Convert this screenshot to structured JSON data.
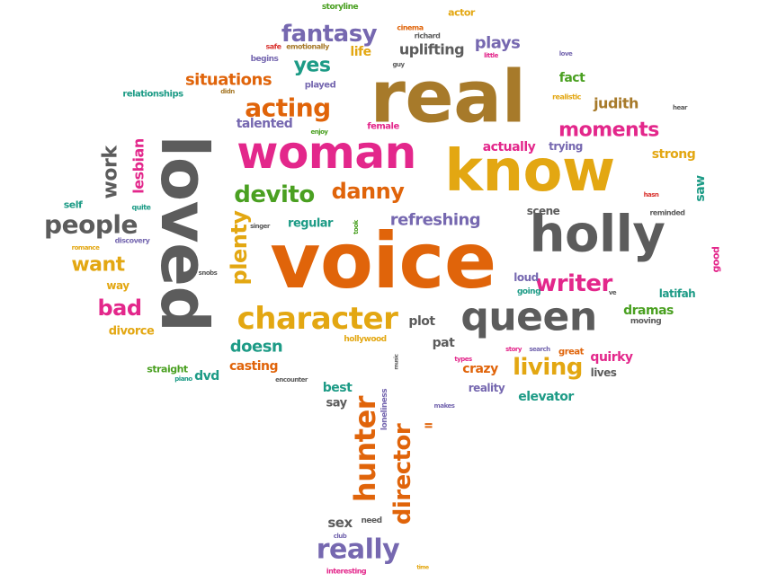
{
  "palette": {
    "orange": "#E0640A",
    "brown": "#A77A2A",
    "gold": "#E3A712",
    "magenta": "#E3278B",
    "green": "#4AA021",
    "teal": "#1D9B86",
    "purple": "#7668B0",
    "gray": "#5C5C5C",
    "red": "#D9322E"
  },
  "words": [
    {
      "text": "real",
      "color": "brown"
    },
    {
      "text": "voice",
      "color": "orange"
    },
    {
      "text": "loved",
      "color": "gray"
    },
    {
      "text": "know",
      "color": "gold"
    },
    {
      "text": "holly",
      "color": "gray"
    },
    {
      "text": "woman",
      "color": "magenta"
    },
    {
      "text": "queen",
      "color": "gray"
    },
    {
      "text": "character",
      "color": "gold"
    },
    {
      "text": "hunter",
      "color": "orange"
    },
    {
      "text": "director",
      "color": "orange"
    },
    {
      "text": "really",
      "color": "purple"
    },
    {
      "text": "acting",
      "color": "orange"
    },
    {
      "text": "devito",
      "color": "green"
    },
    {
      "text": "danny",
      "color": "orange"
    },
    {
      "text": "writer",
      "color": "magenta"
    },
    {
      "text": "moments",
      "color": "magenta"
    },
    {
      "text": "people",
      "color": "gray"
    },
    {
      "text": "plenty",
      "color": "gold"
    },
    {
      "text": "fantasy",
      "color": "purple"
    },
    {
      "text": "living",
      "color": "gold"
    },
    {
      "text": "yes",
      "color": "teal"
    },
    {
      "text": "want",
      "color": "gold"
    },
    {
      "text": "bad",
      "color": "magenta"
    },
    {
      "text": "refreshing",
      "color": "purple"
    },
    {
      "text": "situations",
      "color": "orange"
    },
    {
      "text": "uplifting",
      "color": "gray"
    },
    {
      "text": "plays",
      "color": "purple"
    },
    {
      "text": "doesn",
      "color": "teal"
    },
    {
      "text": "work",
      "color": "gray"
    },
    {
      "text": "lesbian",
      "color": "magenta"
    },
    {
      "text": "talented",
      "color": "purple"
    },
    {
      "text": "judith",
      "color": "brown"
    },
    {
      "text": "strong",
      "color": "gold"
    },
    {
      "text": "actually",
      "color": "magenta"
    },
    {
      "text": "fact",
      "color": "green"
    },
    {
      "text": "dramas",
      "color": "green"
    },
    {
      "text": "crazy",
      "color": "orange"
    },
    {
      "text": "quirky",
      "color": "magenta"
    },
    {
      "text": "elevator",
      "color": "teal"
    },
    {
      "text": "casting",
      "color": "orange"
    },
    {
      "text": "dvd",
      "color": "teal"
    },
    {
      "text": "best",
      "color": "teal"
    },
    {
      "text": "say",
      "color": "gray"
    },
    {
      "text": "sex",
      "color": "gray"
    },
    {
      "text": "plot",
      "color": "gray"
    },
    {
      "text": "pat",
      "color": "gray"
    },
    {
      "text": "reality",
      "color": "purple"
    },
    {
      "text": "lives",
      "color": "gray"
    },
    {
      "text": "latifah",
      "color": "teal"
    },
    {
      "text": "regular",
      "color": "teal"
    },
    {
      "text": "divorce",
      "color": "gold"
    },
    {
      "text": "life",
      "color": "gold"
    },
    {
      "text": "scene",
      "color": "gray"
    },
    {
      "text": "saw",
      "color": "teal"
    },
    {
      "text": "good",
      "color": "magenta"
    },
    {
      "text": "loud",
      "color": "purple"
    },
    {
      "text": "trying",
      "color": "purple"
    },
    {
      "text": "way",
      "color": "gold"
    },
    {
      "text": "self",
      "color": "teal"
    },
    {
      "text": "straight",
      "color": "green"
    },
    {
      "text": "relationships",
      "color": "teal"
    },
    {
      "text": "played",
      "color": "purple"
    },
    {
      "text": "female",
      "color": "magenta"
    },
    {
      "text": "actor",
      "color": "gold"
    },
    {
      "text": "storyline",
      "color": "green"
    },
    {
      "text": "loneliness",
      "color": "purple"
    },
    {
      "text": "hollywood",
      "color": "gold"
    },
    {
      "text": "moving",
      "color": "gray"
    },
    {
      "text": "great",
      "color": "orange"
    },
    {
      "text": "need",
      "color": "gray"
    },
    {
      "text": "going",
      "color": "teal"
    },
    {
      "text": "begins",
      "color": "purple"
    },
    {
      "text": "safe",
      "color": "red"
    },
    {
      "text": "emotionally",
      "color": "brown"
    },
    {
      "text": "cinema",
      "color": "orange"
    },
    {
      "text": "richard",
      "color": "gray"
    },
    {
      "text": "little",
      "color": "magenta"
    },
    {
      "text": "guy",
      "color": "gray"
    },
    {
      "text": "love",
      "color": "purple"
    },
    {
      "text": "realistic",
      "color": "gold"
    },
    {
      "text": "hear",
      "color": "gray"
    },
    {
      "text": "didn",
      "color": "brown"
    },
    {
      "text": "enjoy",
      "color": "green"
    },
    {
      "text": "hasn",
      "color": "red"
    },
    {
      "text": "reminded",
      "color": "gray"
    },
    {
      "text": "quite",
      "color": "teal"
    },
    {
      "text": "singer",
      "color": "gray"
    },
    {
      "text": "took",
      "color": "green"
    },
    {
      "text": "romance",
      "color": "gold"
    },
    {
      "text": "discovery",
      "color": "purple"
    },
    {
      "text": "snobs",
      "color": "gray"
    },
    {
      "text": "ve",
      "color": "gray"
    },
    {
      "text": "story",
      "color": "magenta"
    },
    {
      "text": "search",
      "color": "purple"
    },
    {
      "text": "types",
      "color": "magenta"
    },
    {
      "text": "music",
      "color": "gray"
    },
    {
      "text": "piano",
      "color": "teal"
    },
    {
      "text": "encounter",
      "color": "gray"
    },
    {
      "text": "makes",
      "color": "purple"
    },
    {
      "text": "ll",
      "color": "orange"
    },
    {
      "text": "club",
      "color": "purple"
    },
    {
      "text": "interesting",
      "color": "magenta"
    },
    {
      "text": "time",
      "color": "gold"
    }
  ]
}
